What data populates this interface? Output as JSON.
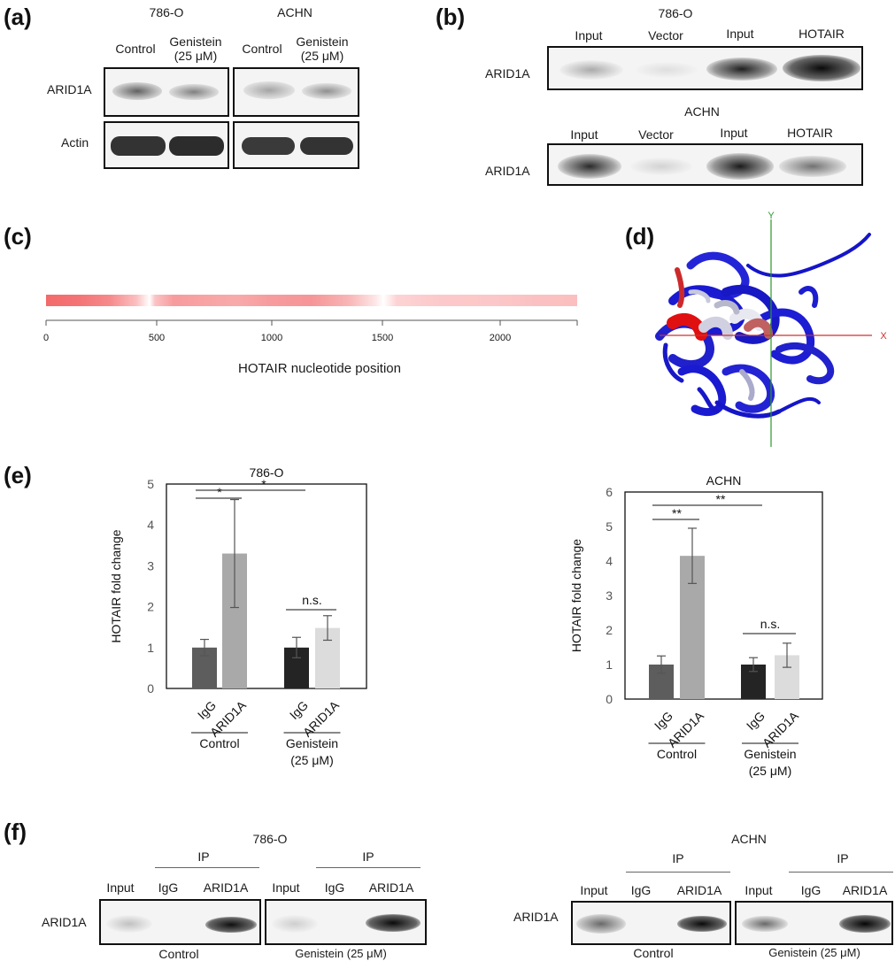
{
  "panels": {
    "a": "(a)",
    "b": "(b)",
    "c": "(c)",
    "d": "(d)",
    "e": "(e)",
    "f": "(f)"
  },
  "panel_a": {
    "cell_lines": [
      "786-O",
      "ACHN"
    ],
    "lanes": [
      "Control",
      "Genistein",
      "(25 μM)",
      "Control",
      "Genistein",
      "(25 μM)"
    ],
    "rows": [
      "ARID1A",
      "Actin"
    ]
  },
  "panel_b": {
    "top": {
      "cell_line": "786-O",
      "lanes": [
        "Input",
        "Vector",
        "Input",
        "HOTAIR"
      ],
      "row": "ARID1A"
    },
    "bottom": {
      "cell_line": "ACHN",
      "lanes": [
        "Input",
        "Vector",
        "Input",
        "HOTAIR"
      ],
      "row": "ARID1A"
    }
  },
  "panel_c": {
    "ticks": [
      "0",
      "500",
      "1000",
      "1500",
      "2000"
    ],
    "xlabel": "HOTAIR nucleotide position"
  },
  "panel_d": {
    "axis_y": "Y",
    "axis_x": "X"
  },
  "panel_f": {
    "cell_lines": [
      "786-O",
      "ACHN"
    ],
    "ip": "IP",
    "lanes": [
      "Input",
      "IgG",
      "ARID1A"
    ],
    "row": "ARID1A",
    "groups": [
      "Control",
      "Genistein (25 μM)"
    ]
  },
  "chart_data": [
    {
      "type": "bar",
      "title": "786-O",
      "ylabel": "HOTAIR fold change",
      "ylim": [
        0,
        5
      ],
      "yticks": [
        "0",
        "1",
        "2",
        "3",
        "4",
        "5"
      ],
      "categories": [
        "IgG",
        "ARID1A",
        "IgG",
        "ARID1A"
      ],
      "groups": [
        "Control",
        "Genistein",
        "(25 μM)"
      ],
      "values": [
        1.0,
        3.3,
        1.0,
        1.48
      ],
      "errors": [
        0.2,
        1.32,
        0.25,
        0.3
      ],
      "colors": [
        "#5d5d5d",
        "#a9a9a9",
        "#242424",
        "#dcdcdc"
      ],
      "annotations": [
        "*",
        "*",
        "n.s."
      ]
    },
    {
      "type": "bar",
      "title": "ACHN",
      "ylabel": "HOTAIR fold change",
      "ylim": [
        0,
        6
      ],
      "yticks": [
        "0",
        "1",
        "2",
        "3",
        "4",
        "5",
        "6"
      ],
      "categories": [
        "IgG",
        "ARID1A",
        "IgG",
        "ARID1A"
      ],
      "groups": [
        "Control",
        "Genistein",
        "(25 μM)"
      ],
      "values": [
        1.0,
        4.15,
        1.0,
        1.27
      ],
      "errors": [
        0.25,
        0.8,
        0.2,
        0.35
      ],
      "colors": [
        "#5d5d5d",
        "#a9a9a9",
        "#242424",
        "#dcdcdc"
      ],
      "annotations": [
        "**",
        "**",
        "n.s."
      ]
    }
  ]
}
